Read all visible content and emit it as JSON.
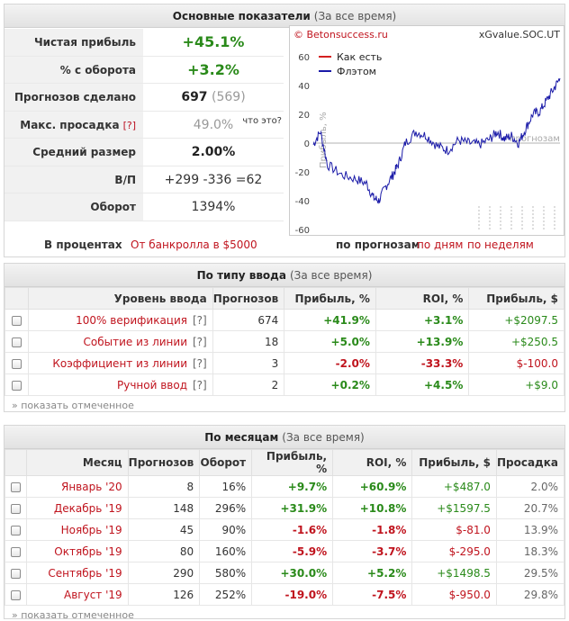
{
  "summary": {
    "title": "Основные показатели",
    "period": "(За все время)",
    "rows": [
      {
        "label": "Чистая прибыль",
        "value": "+45.1%"
      },
      {
        "label": "% с оборота",
        "value": "+3.2%"
      },
      {
        "label": "Прогнозов сделано",
        "value": "697",
        "extra": "(569)"
      },
      {
        "label": "Макс. просадка",
        "q": "[?]",
        "value": "49.0%",
        "hint": "что это?"
      },
      {
        "label": "Средний размер",
        "value": "2.00%"
      },
      {
        "label": "В/П",
        "value": "+299 -336 =62"
      },
      {
        "label": "Оборот",
        "value": "1394%"
      }
    ],
    "footer_label": "В процентах",
    "footer_link": "От банкролла в $5000"
  },
  "chart_links": {
    "by_forecast": "по прогнозам",
    "by_day": "по дням",
    "by_week": "по неделям"
  },
  "chart_data": {
    "type": "line",
    "source_left": "© Betonsuccess.ru",
    "source_right": "xGvalue.SOC.UT",
    "ylabel": "Прибыль, %",
    "xlabel": "прогнозам",
    "ylim": [
      -60,
      60
    ],
    "yticks": [
      "60",
      "40",
      "20",
      "0",
      "-20",
      "-40",
      "-60"
    ],
    "legend_placement": "top-left",
    "colors": {
      "as_is": "#d42020",
      "flat": "#1a1aa8"
    },
    "series": [
      {
        "name": "Как есть",
        "values": []
      },
      {
        "name": "Флэтом",
        "x_count": 697,
        "points": [
          [
            0,
            -1
          ],
          [
            20,
            8
          ],
          [
            40,
            -15
          ],
          [
            80,
            -22
          ],
          [
            120,
            -25
          ],
          [
            150,
            -28
          ],
          [
            170,
            -38
          ],
          [
            185,
            -40
          ],
          [
            205,
            -30
          ],
          [
            225,
            -22
          ],
          [
            240,
            -15
          ],
          [
            260,
            0
          ],
          [
            290,
            8
          ],
          [
            320,
            5
          ],
          [
            350,
            -2
          ],
          [
            380,
            -5
          ],
          [
            410,
            2
          ],
          [
            440,
            0
          ],
          [
            470,
            -1
          ],
          [
            500,
            3
          ],
          [
            520,
            8
          ],
          [
            540,
            3
          ],
          [
            560,
            5
          ],
          [
            580,
            0
          ],
          [
            600,
            10
          ],
          [
            620,
            20
          ],
          [
            640,
            22
          ],
          [
            660,
            30
          ],
          [
            680,
            38
          ],
          [
            697,
            45
          ]
        ]
      }
    ]
  },
  "by_input": {
    "title": "По типу ввода",
    "period": "(За все время)",
    "headers": [
      "Уровень ввода",
      "Прогнозов",
      "Прибыль, %",
      "ROI, %",
      "Прибыль, $"
    ],
    "rows": [
      {
        "name": "100% верификация",
        "q": "[?]",
        "count": "674",
        "profit_pct": "+41.9%",
        "roi": "+3.1%",
        "profit_usd": "+$2097.5"
      },
      {
        "name": "Событие из линии",
        "q": "[?]",
        "count": "18",
        "profit_pct": "+5.0%",
        "roi": "+13.9%",
        "profit_usd": "+$250.5"
      },
      {
        "name": "Коэффициент из линии",
        "q": "[?]",
        "count": "3",
        "profit_pct": "-2.0%",
        "roi": "-33.3%",
        "profit_usd": "$-100.0"
      },
      {
        "name": "Ручной ввод",
        "q": "[?]",
        "count": "2",
        "profit_pct": "+0.2%",
        "roi": "+4.5%",
        "profit_usd": "+$9.0"
      }
    ],
    "show_marked": "» показать отмеченное"
  },
  "by_month": {
    "title": "По месяцам",
    "period": "(За все время)",
    "headers": [
      "Месяц",
      "Прогнозов",
      "Оборот",
      "Прибыль, %",
      "ROI, %",
      "Прибыль, $",
      "Просадка"
    ],
    "rows": [
      {
        "month": "Январь '20",
        "count": "8",
        "turnover": "16%",
        "profit_pct": "+9.7%",
        "roi": "+60.9%",
        "profit_usd": "+$487.0",
        "drawdown": "2.0%"
      },
      {
        "month": "Декабрь '19",
        "count": "148",
        "turnover": "296%",
        "profit_pct": "+31.9%",
        "roi": "+10.8%",
        "profit_usd": "+$1597.5",
        "drawdown": "20.7%"
      },
      {
        "month": "Ноябрь '19",
        "count": "45",
        "turnover": "90%",
        "profit_pct": "-1.6%",
        "roi": "-1.8%",
        "profit_usd": "$-81.0",
        "drawdown": "13.9%"
      },
      {
        "month": "Октябрь '19",
        "count": "80",
        "turnover": "160%",
        "profit_pct": "-5.9%",
        "roi": "-3.7%",
        "profit_usd": "$-295.0",
        "drawdown": "18.3%"
      },
      {
        "month": "Сентябрь '19",
        "count": "290",
        "turnover": "580%",
        "profit_pct": "+30.0%",
        "roi": "+5.2%",
        "profit_usd": "+$1498.5",
        "drawdown": "29.5%"
      },
      {
        "month": "Август '19",
        "count": "126",
        "turnover": "252%",
        "profit_pct": "-19.0%",
        "roi": "-7.5%",
        "profit_usd": "$-950.0",
        "drawdown": "29.8%"
      }
    ],
    "show_marked": "» показать отмеченное"
  }
}
